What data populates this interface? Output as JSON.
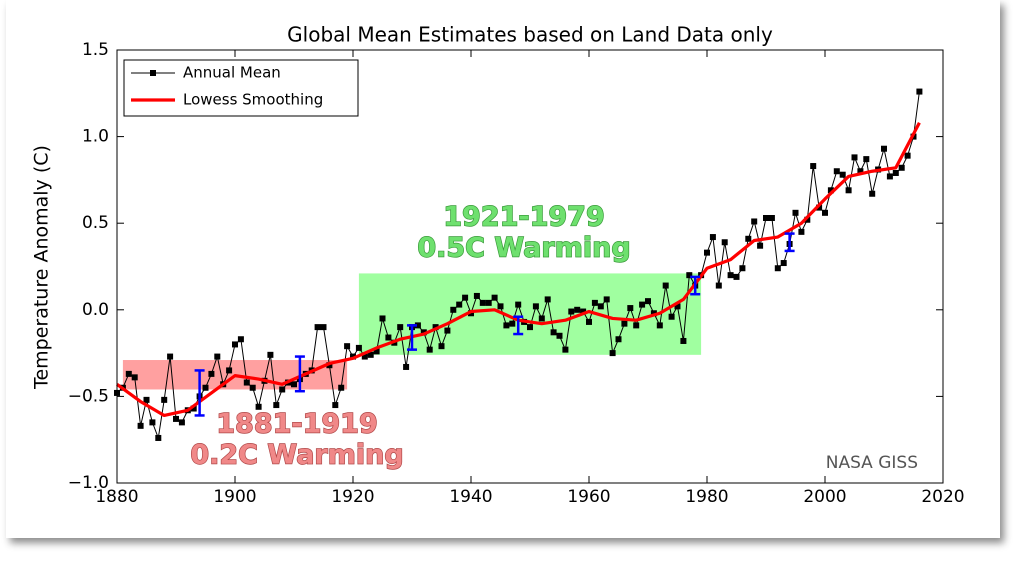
{
  "chart_data": {
    "type": "line",
    "title": "Global Mean Estimates based on Land Data only",
    "y_label": "Temperature Anomaly (C)",
    "series": [
      {
        "name": "Annual Mean",
        "color": "#000000",
        "x": [
          1880,
          1881,
          1882,
          1883,
          1884,
          1885,
          1886,
          1887,
          1888,
          1889,
          1890,
          1891,
          1892,
          1893,
          1894,
          1895,
          1896,
          1897,
          1898,
          1899,
          1900,
          1901,
          1902,
          1903,
          1904,
          1905,
          1906,
          1907,
          1908,
          1909,
          1910,
          1911,
          1912,
          1913,
          1914,
          1915,
          1916,
          1917,
          1918,
          1919,
          1920,
          1921,
          1922,
          1923,
          1924,
          1925,
          1926,
          1927,
          1928,
          1929,
          1930,
          1931,
          1932,
          1933,
          1934,
          1935,
          1936,
          1937,
          1938,
          1939,
          1940,
          1941,
          1942,
          1943,
          1944,
          1945,
          1946,
          1947,
          1948,
          1949,
          1950,
          1951,
          1952,
          1953,
          1954,
          1955,
          1956,
          1957,
          1958,
          1959,
          1960,
          1961,
          1962,
          1963,
          1964,
          1965,
          1966,
          1967,
          1968,
          1969,
          1970,
          1971,
          1972,
          1973,
          1974,
          1975,
          1976,
          1977,
          1978,
          1979,
          1980,
          1981,
          1982,
          1983,
          1984,
          1985,
          1986,
          1987,
          1988,
          1989,
          1990,
          1991,
          1992,
          1993,
          1994,
          1995,
          1996,
          1997,
          1998,
          1999,
          2000,
          2001,
          2002,
          2003,
          2004,
          2005,
          2006,
          2007,
          2008,
          2009,
          2010,
          2011,
          2012,
          2013,
          2014,
          2015,
          2016
        ],
        "values": [
          -0.48,
          -0.45,
          -0.37,
          -0.39,
          -0.67,
          -0.52,
          -0.65,
          -0.74,
          -0.52,
          -0.27,
          -0.63,
          -0.65,
          -0.58,
          -0.57,
          -0.5,
          -0.45,
          -0.37,
          -0.27,
          -0.43,
          -0.35,
          -0.2,
          -0.17,
          -0.42,
          -0.45,
          -0.56,
          -0.41,
          -0.26,
          -0.55,
          -0.46,
          -0.42,
          -0.43,
          -0.4,
          -0.37,
          -0.35,
          -0.1,
          -0.1,
          -0.32,
          -0.55,
          -0.45,
          -0.21,
          -0.27,
          -0.22,
          -0.27,
          -0.26,
          -0.24,
          -0.05,
          -0.16,
          -0.19,
          -0.1,
          -0.33,
          -0.1,
          -0.09,
          -0.13,
          -0.23,
          -0.1,
          -0.21,
          -0.12,
          0.0,
          0.03,
          0.07,
          -0.02,
          0.08,
          0.04,
          0.04,
          0.07,
          0.02,
          -0.09,
          -0.08,
          0.03,
          -0.07,
          -0.1,
          0.02,
          -0.05,
          0.06,
          -0.13,
          -0.15,
          -0.23,
          -0.01,
          0.0,
          -0.01,
          -0.07,
          0.04,
          0.02,
          0.06,
          -0.25,
          -0.17,
          -0.08,
          0.01,
          -0.09,
          0.03,
          0.05,
          -0.02,
          -0.09,
          0.14,
          -0.04,
          0.02,
          -0.18,
          0.2,
          0.14,
          0.2,
          0.33,
          0.42,
          0.14,
          0.39,
          0.2,
          0.19,
          0.24,
          0.41,
          0.51,
          0.37,
          0.53,
          0.53,
          0.24,
          0.27,
          0.38,
          0.56,
          0.45,
          0.52,
          0.83,
          0.59,
          0.56,
          0.69,
          0.8,
          0.78,
          0.69,
          0.88,
          0.8,
          0.87,
          0.67,
          0.81,
          0.93,
          0.77,
          0.79,
          0.82,
          0.89,
          1.0,
          1.26
        ]
      },
      {
        "name": "Lowess Smoothing",
        "color": "#ff0000",
        "x": [
          1880,
          1884,
          1888,
          1892,
          1896,
          1900,
          1904,
          1908,
          1912,
          1916,
          1920,
          1924,
          1928,
          1932,
          1936,
          1940,
          1944,
          1948,
          1952,
          1956,
          1960,
          1964,
          1968,
          1972,
          1976,
          1980,
          1984,
          1988,
          1992,
          1996,
          2000,
          2004,
          2008,
          2012,
          2016
        ],
        "values": [
          -0.43,
          -0.53,
          -0.61,
          -0.58,
          -0.48,
          -0.38,
          -0.4,
          -0.43,
          -0.37,
          -0.31,
          -0.28,
          -0.22,
          -0.17,
          -0.14,
          -0.08,
          -0.01,
          0.0,
          -0.06,
          -0.08,
          -0.06,
          -0.01,
          -0.05,
          -0.06,
          -0.02,
          0.06,
          0.24,
          0.29,
          0.4,
          0.42,
          0.5,
          0.64,
          0.77,
          0.8,
          0.82,
          1.08
        ]
      }
    ],
    "error_bars": {
      "color": "#0000ff",
      "x": [
        1894,
        1911,
        1930,
        1948,
        1978,
        1994
      ],
      "values": [
        -0.48,
        -0.37,
        -0.16,
        -0.09,
        0.14,
        0.39
      ],
      "errors": [
        0.13,
        0.1,
        0.07,
        0.05,
        0.05,
        0.05
      ]
    },
    "regions": [
      {
        "x": [
          1881,
          1919
        ],
        "y": [
          -0.46,
          -0.29
        ],
        "color": "#ff8080",
        "text_color": "#f08888",
        "labels": [
          "1881-1919",
          "0.2C Warming"
        ]
      },
      {
        "x": [
          1921,
          1979
        ],
        "y": [
          -0.26,
          0.21
        ],
        "color": "#80ff80",
        "text_color": "#6ee06e",
        "labels": [
          "1921-1979",
          "0.5C Warming"
        ]
      }
    ],
    "annotation": "NASA GISS",
    "xlim": [
      1880,
      2020
    ],
    "xticks": [
      1880,
      1900,
      1920,
      1940,
      1960,
      1980,
      2000,
      2020
    ],
    "ylim": [
      -1.0,
      1.5
    ],
    "yticks": [
      {
        "value": -1.0,
        "label": "−1.0"
      },
      {
        "value": -0.5,
        "label": "−0.5"
      },
      {
        "value": 0.0,
        "label": "0.0"
      },
      {
        "value": 0.5,
        "label": "0.5"
      },
      {
        "value": 1.0,
        "label": "1.0"
      },
      {
        "value": 1.5,
        "label": "1.5"
      }
    ],
    "legend": "upper left",
    "grid": false
  }
}
